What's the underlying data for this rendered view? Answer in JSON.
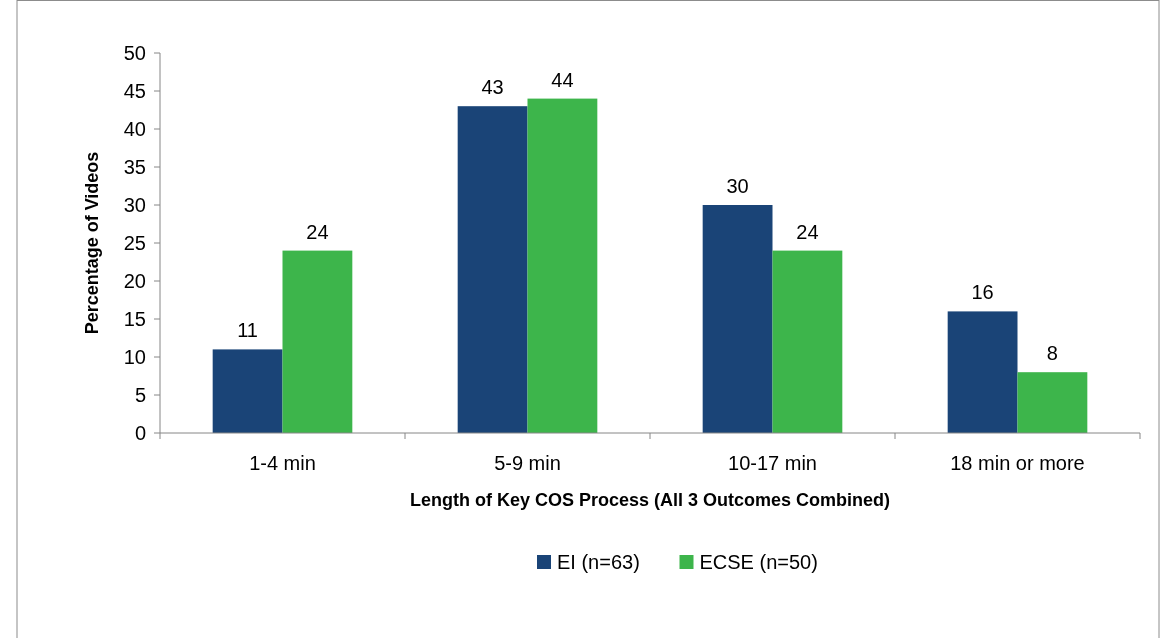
{
  "chart_data": {
    "type": "bar",
    "xlabel": "Length of Key COS Process (All 3 Outcomes Combined)",
    "ylabel": "Percentage of Videos",
    "categories": [
      "1-4 min",
      "5-9 min",
      "10-17 min",
      "18 min or more"
    ],
    "series": [
      {
        "name": "EI (n=63)",
        "color": "#1a4477",
        "values": [
          11,
          43,
          30,
          16
        ]
      },
      {
        "name": "ECSE (n=50)",
        "color": "#3db54b",
        "values": [
          24,
          44,
          24,
          8
        ]
      }
    ],
    "ylim": [
      0,
      50
    ],
    "yticks": [
      0,
      5,
      10,
      15,
      20,
      25,
      30,
      35,
      40,
      45,
      50
    ],
    "grid": false,
    "legend": "bottom",
    "data_labels": true
  }
}
